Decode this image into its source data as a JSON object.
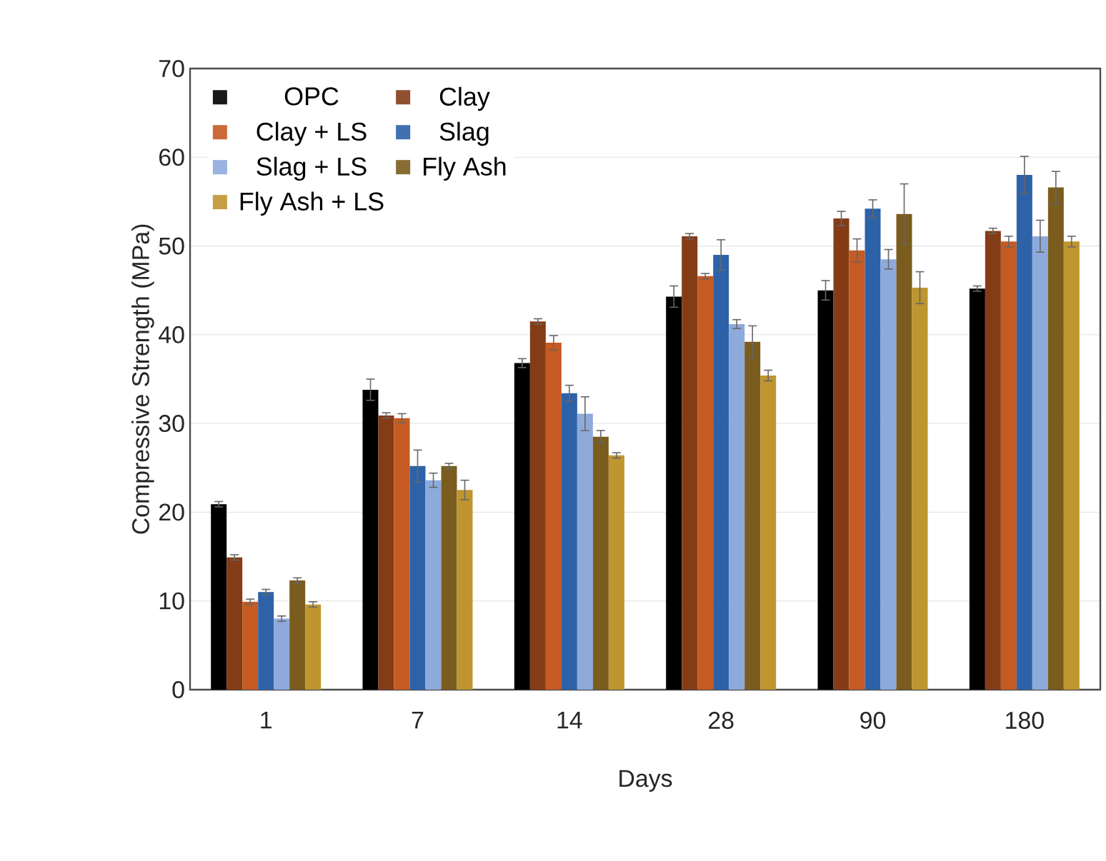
{
  "chart_data": {
    "type": "bar",
    "xlabel": "Days",
    "ylabel": "Compressive Strength (MPa)",
    "categories": [
      "1",
      "7",
      "14",
      "28",
      "90",
      "180"
    ],
    "ylim": [
      0,
      70
    ],
    "yticks": [
      0,
      10,
      20,
      30,
      40,
      50,
      60,
      70
    ],
    "grid": "y",
    "legend": "top left",
    "series": [
      {
        "name": "OPC",
        "color": "#000000",
        "values": [
          20.9,
          33.8,
          36.8,
          44.3,
          45.0,
          45.2
        ],
        "errors": [
          0.3,
          1.2,
          0.5,
          1.2,
          1.1,
          0.3
        ]
      },
      {
        "name": "Clay",
        "color": "#843c17",
        "values": [
          14.9,
          30.9,
          41.5,
          51.1,
          53.1,
          51.7
        ],
        "errors": [
          0.3,
          0.3,
          0.3,
          0.3,
          0.8,
          0.3
        ]
      },
      {
        "name": "Clay + LS",
        "color": "#c55a22",
        "values": [
          9.9,
          30.6,
          39.1,
          46.6,
          49.5,
          50.5
        ],
        "errors": [
          0.3,
          0.5,
          0.8,
          0.3,
          1.3,
          0.6
        ]
      },
      {
        "name": "Slag",
        "color": "#2e62a8",
        "values": [
          11.0,
          25.2,
          33.4,
          49.0,
          54.2,
          58.0
        ],
        "errors": [
          0.3,
          1.8,
          0.9,
          1.7,
          1.0,
          2.1
        ]
      },
      {
        "name": "Slag + LS",
        "color": "#8eaadb",
        "values": [
          8.0,
          23.6,
          31.1,
          41.2,
          48.5,
          51.1
        ],
        "errors": [
          0.3,
          0.8,
          1.9,
          0.5,
          1.1,
          1.8
        ]
      },
      {
        "name": "Fly Ash",
        "color": "#7a5c1e",
        "values": [
          12.3,
          25.2,
          28.5,
          39.2,
          53.6,
          56.6
        ],
        "errors": [
          0.3,
          0.3,
          0.7,
          1.8,
          3.4,
          1.8
        ]
      },
      {
        "name": "Fly Ash + LS",
        "color": "#bf9530",
        "values": [
          9.6,
          22.5,
          26.4,
          35.4,
          45.3,
          50.5
        ],
        "errors": [
          0.3,
          1.1,
          0.3,
          0.6,
          1.8,
          0.6
        ]
      }
    ]
  }
}
